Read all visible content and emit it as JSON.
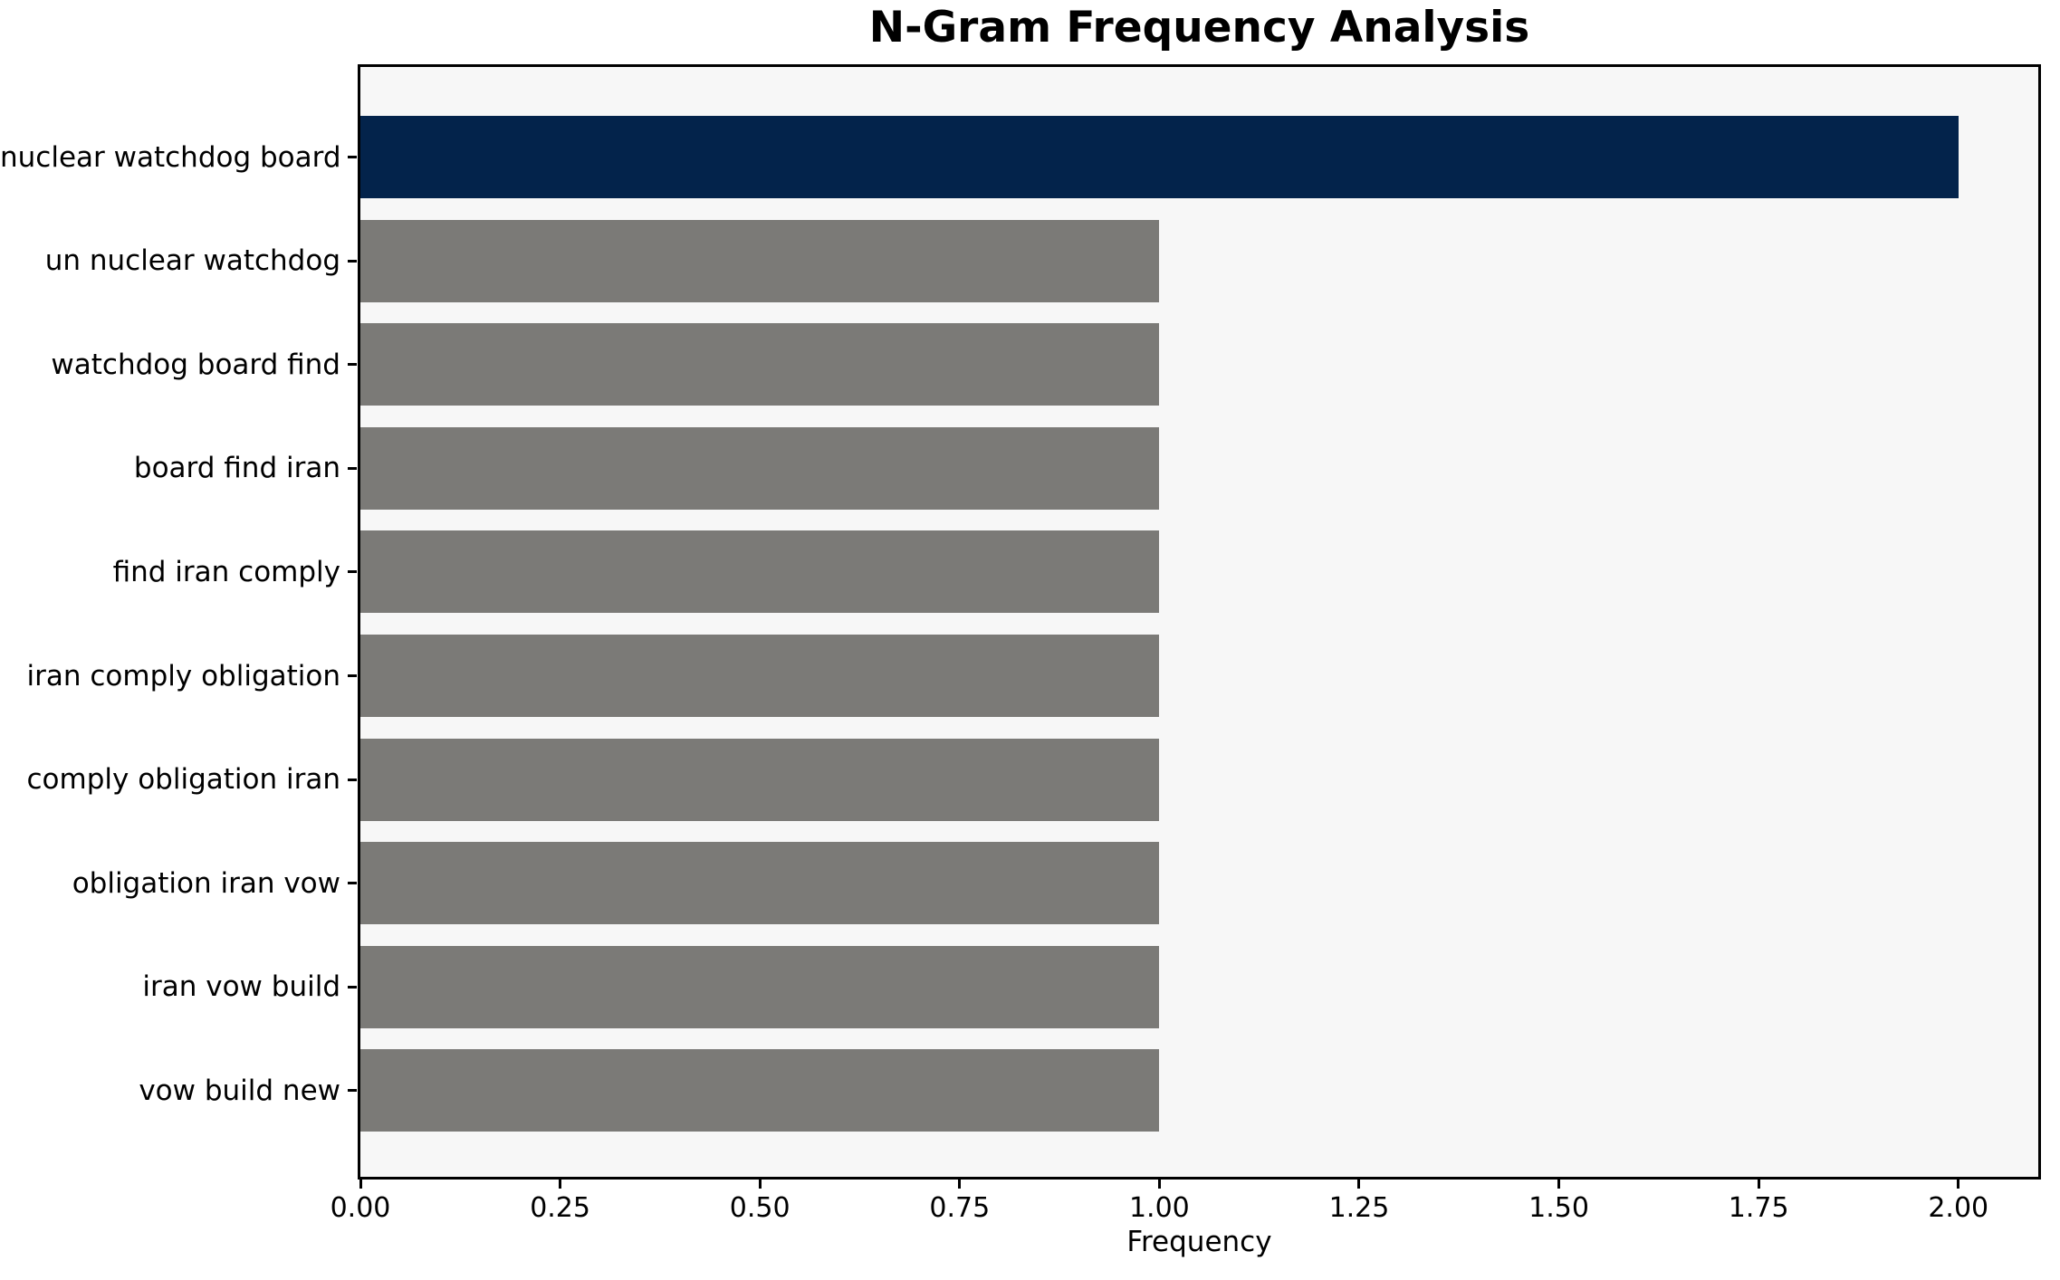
{
  "chart_data": {
    "type": "bar",
    "orientation": "horizontal",
    "title": "N-Gram Frequency Analysis",
    "xlabel": "Frequency",
    "ylabel": "",
    "categories": [
      "nuclear watchdog board",
      "un nuclear watchdog",
      "watchdog board find",
      "board find iran",
      "find iran comply",
      "iran comply obligation",
      "comply obligation iran",
      "obligation iran vow",
      "iran vow build",
      "vow build new"
    ],
    "values": [
      2,
      1,
      1,
      1,
      1,
      1,
      1,
      1,
      1,
      1
    ],
    "bar_colors": [
      "#03234B",
      "#7B7A77",
      "#7B7A77",
      "#7B7A77",
      "#7B7A77",
      "#7B7A77",
      "#7B7A77",
      "#7B7A77",
      "#7B7A77",
      "#7B7A77"
    ],
    "xlim": [
      0,
      2.1
    ],
    "x_tick_values": [
      0,
      0.25,
      0.5,
      0.75,
      1.0,
      1.25,
      1.5,
      1.75,
      2.0
    ],
    "x_tick_labels": [
      "0.00",
      "0.25",
      "0.50",
      "0.75",
      "1.00",
      "1.25",
      "1.50",
      "1.75",
      "2.00"
    ],
    "grid": false,
    "legend_position": "none",
    "colors": {
      "highlight_bar": "#03234B",
      "default_bar": "#7B7A77",
      "plot_background": "#F7F7F7",
      "figure_background": "#FFFFFF",
      "axis_line": "#000000",
      "text": "#000000"
    }
  }
}
